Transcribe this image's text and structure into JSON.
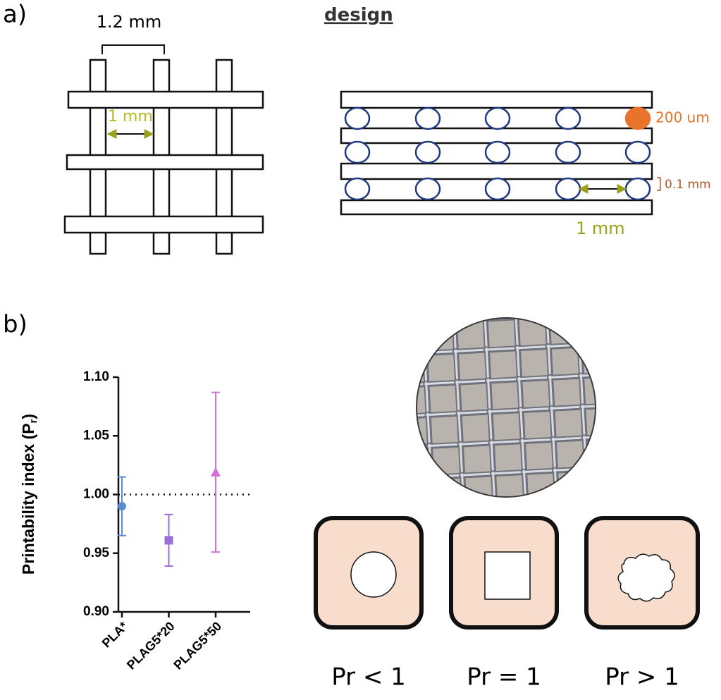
{
  "panel_a": {
    "label": "a)",
    "spacing": "1.2 mm",
    "gap": "1 mm"
  },
  "design": {
    "title": "design",
    "diameter": "200 um",
    "layer": "0.1 mm",
    "gap": "1 mm"
  },
  "panel_b": {
    "label": "b)",
    "shapes": [
      "Pr < 1",
      "Pr = 1",
      "Pr > 1"
    ]
  },
  "chart_data": {
    "type": "errorbar",
    "y_label": {
      "main": "Printability index (P",
      "sub": "r",
      "end": ")"
    },
    "categories": [
      "PLA*",
      "PLAG5*20",
      "PLAG5*50"
    ],
    "values": [
      0.99,
      0.961,
      1.019
    ],
    "errors": [
      0.025,
      0.022,
      0.068
    ],
    "colors": [
      "#5b8bd0",
      "#9b6fd8",
      "#d070d8"
    ],
    "markers": [
      "circle",
      "square",
      "triangle"
    ],
    "reference": 1.0,
    "ylim": [
      0.9,
      1.1
    ],
    "yticks": [
      {
        "value": 0.9,
        "label": "0.90"
      },
      {
        "value": 0.95,
        "label": "0.95"
      },
      {
        "value": 1.0,
        "label": "1.00"
      },
      {
        "value": 1.05,
        "label": "1.05"
      },
      {
        "value": 1.1,
        "label": "1.10"
      }
    ]
  }
}
